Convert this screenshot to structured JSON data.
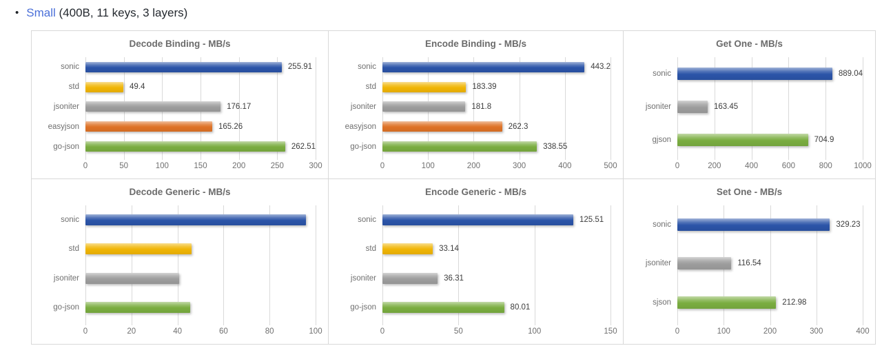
{
  "header": {
    "bullet": "•",
    "link_label": "Small",
    "suffix": " (400B, 11 keys, 3 layers)"
  },
  "colors": {
    "sonic": "#2b54a8",
    "std": "#f0b505",
    "jsoniter": "#9d9d9d",
    "easyjson": "#de7226",
    "go-json": "#7aad40",
    "gjson": "#7aad40",
    "sjson": "#7aad40"
  },
  "chart_data": [
    {
      "type": "bar",
      "orientation": "horizontal",
      "title": "Decode Binding - MB/s",
      "xlabel": "",
      "ylabel": "",
      "categories": [
        "sonic",
        "std",
        "jsoniter",
        "easyjson",
        "go-json"
      ],
      "values": [
        255.91,
        49.4,
        176.17,
        165.26,
        262.51
      ],
      "value_labels": [
        "255.91",
        "49.4",
        "176.17",
        "165.26",
        "262.51"
      ],
      "xlim": [
        0,
        300
      ],
      "xticks": [
        0,
        50,
        100,
        150,
        200,
        250,
        300
      ],
      "grid": true
    },
    {
      "type": "bar",
      "orientation": "horizontal",
      "title": "Encode Binding - MB/s",
      "xlabel": "",
      "ylabel": "",
      "categories": [
        "sonic",
        "std",
        "jsoniter",
        "easyjson",
        "go-json"
      ],
      "values": [
        443.2,
        183.39,
        181.8,
        262.3,
        338.55
      ],
      "value_labels": [
        "443.2",
        "183.39",
        "181.8",
        "262.3",
        "338.55"
      ],
      "xlim": [
        0,
        500
      ],
      "xticks": [
        0,
        100,
        200,
        300,
        400,
        500
      ],
      "grid": true
    },
    {
      "type": "bar",
      "orientation": "horizontal",
      "title": "Get One - MB/s",
      "xlabel": "",
      "ylabel": "",
      "categories": [
        "sonic",
        "jsoniter",
        "gjson"
      ],
      "values": [
        889.04,
        163.45,
        704.9
      ],
      "value_labels": [
        "889.04",
        "163.45",
        "704.9"
      ],
      "xlim": [
        0,
        1000
      ],
      "xticks": [
        0,
        200,
        400,
        600,
        800,
        1000
      ],
      "grid": true
    },
    {
      "type": "bar",
      "orientation": "horizontal",
      "title": "Decode Generic - MB/s",
      "xlabel": "",
      "ylabel": "",
      "categories": [
        "sonic",
        "std",
        "jsoniter",
        "go-json"
      ],
      "values": [
        95.9,
        46.0,
        40.7,
        45.6
      ],
      "value_labels": [
        null,
        null,
        null,
        null
      ],
      "xlim": [
        0,
        100
      ],
      "xticks": [
        0,
        20,
        40,
        60,
        80,
        100
      ],
      "grid": true
    },
    {
      "type": "bar",
      "orientation": "horizontal",
      "title": "Encode Generic - MB/s",
      "xlabel": "",
      "ylabel": "",
      "categories": [
        "sonic",
        "std",
        "jsoniter",
        "go-json"
      ],
      "values": [
        125.51,
        33.14,
        36.31,
        80.01
      ],
      "value_labels": [
        "125.51",
        "33.14",
        "36.31",
        "80.01"
      ],
      "xlim": [
        0,
        150
      ],
      "xticks": [
        0,
        50,
        100,
        150
      ],
      "grid": true
    },
    {
      "type": "bar",
      "orientation": "horizontal",
      "title": "Set One - MB/s",
      "xlabel": "",
      "ylabel": "",
      "categories": [
        "sonic",
        "jsoniter",
        "sjson"
      ],
      "values": [
        329.23,
        116.54,
        212.98
      ],
      "value_labels": [
        "329.23",
        "116.54",
        "212.98"
      ],
      "xlim": [
        0,
        400
      ],
      "xticks": [
        0,
        100,
        200,
        300,
        400
      ],
      "grid": true
    }
  ]
}
